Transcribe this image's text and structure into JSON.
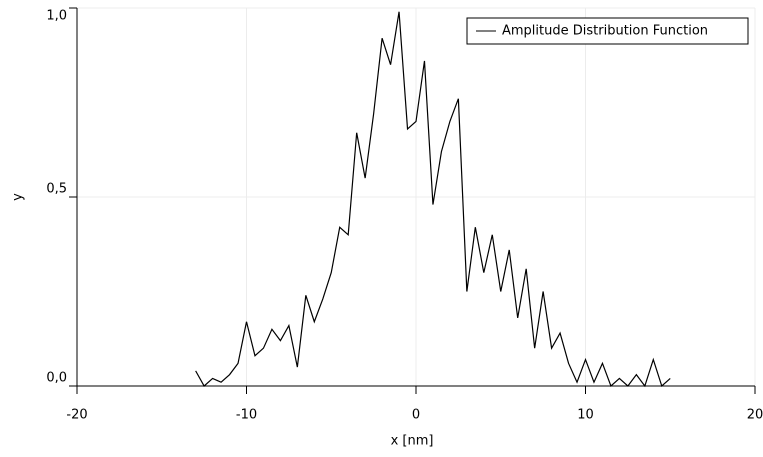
{
  "chart_data": {
    "type": "line",
    "xlabel": "x [nm]",
    "ylabel": "y",
    "x": [
      -13,
      -12.5,
      -12,
      -11.5,
      -11,
      -10.5,
      -10,
      -9.5,
      -9,
      -8.5,
      -8,
      -7.5,
      -7,
      -6.5,
      -6,
      -5.5,
      -5,
      -4.5,
      -4,
      -3.5,
      -3,
      -2.5,
      -2,
      -1.5,
      -1,
      -0.5,
      0,
      0.5,
      1,
      1.5,
      2,
      2.5,
      3,
      3.5,
      4,
      4.5,
      5,
      5.5,
      6,
      6.5,
      7,
      7.5,
      8,
      8.5,
      9,
      9.5,
      10,
      10.5,
      11,
      11.5,
      12,
      12.5,
      13,
      13.5,
      14,
      14.5,
      15
    ],
    "series": [
      {
        "name": "Amplitude Distribution Function",
        "color": "#000000",
        "values": [
          0.04,
          0.0,
          0.02,
          0.01,
          0.03,
          0.06,
          0.17,
          0.08,
          0.1,
          0.15,
          0.12,
          0.16,
          0.05,
          0.24,
          0.17,
          0.23,
          0.3,
          0.42,
          0.4,
          0.67,
          0.55,
          0.72,
          0.92,
          0.85,
          0.99,
          0.68,
          0.7,
          0.86,
          0.48,
          0.62,
          0.7,
          0.76,
          0.25,
          0.42,
          0.3,
          0.4,
          0.25,
          0.36,
          0.18,
          0.31,
          0.1,
          0.25,
          0.1,
          0.14,
          0.06,
          0.01,
          0.07,
          0.01,
          0.06,
          0.0,
          0.02,
          0.0,
          0.03,
          0.0,
          0.07,
          0.0,
          0.02
        ]
      }
    ],
    "xlim": [
      -20,
      20
    ],
    "xticks": [
      -20,
      -10,
      0,
      10,
      20
    ],
    "ylim": [
      0,
      1
    ],
    "yticks": [
      {
        "value": 0,
        "label": "0,0"
      },
      {
        "value": 0.5,
        "label": "0,5"
      },
      {
        "value": 1,
        "label": "1,0"
      }
    ],
    "grid": true,
    "legend": "top-right"
  }
}
